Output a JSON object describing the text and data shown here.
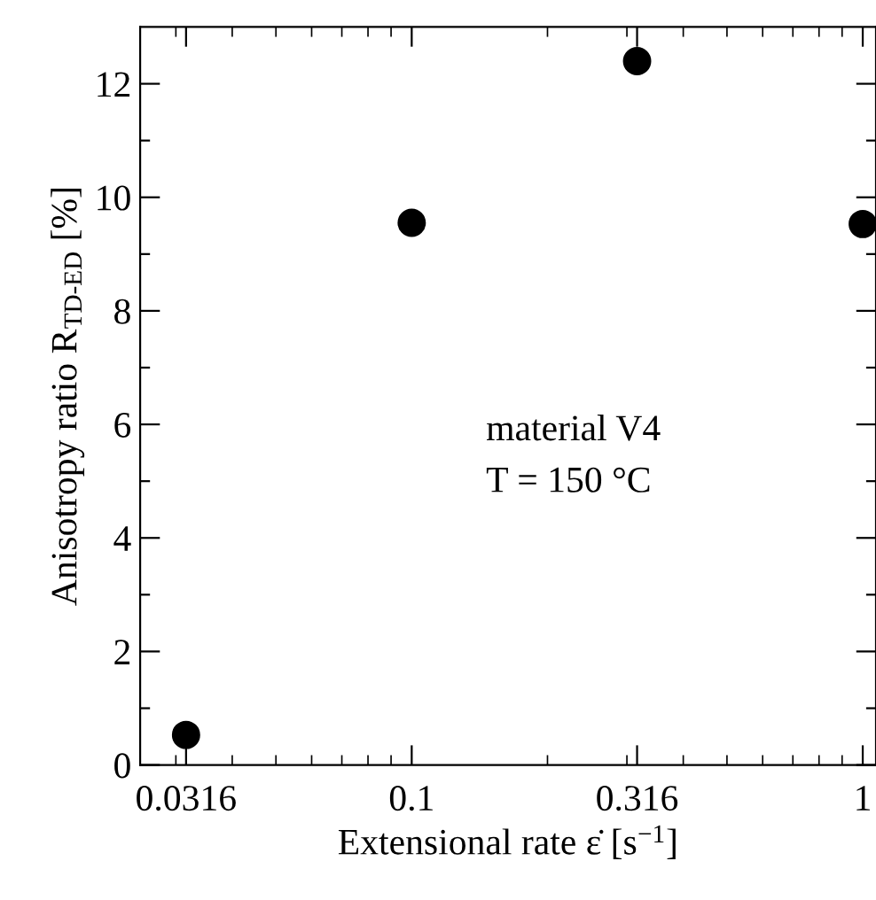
{
  "chart_data": {
    "type": "scatter",
    "xlabel": "Extensional rate ε̇ [s$^{−1}$]",
    "ylabel": "Anisotropy ratio R$_{TD-ED}$ [%]",
    "x": [
      0.0316,
      0.1,
      0.316,
      1
    ],
    "series": [
      {
        "color": "#000000",
        "values": [
          0.53,
          9.55,
          12.4,
          9.53
        ]
      }
    ],
    "log": "x",
    "xlim": [
      0.025,
      1.07
    ],
    "xticks": [
      0.0316,
      0.1,
      0.316,
      1
    ],
    "ylim": [
      0,
      13
    ],
    "yticks": [
      0,
      {
        "value": 1,
        "label": null
      },
      2,
      {
        "value": 3,
        "label": null
      },
      4,
      {
        "value": 5,
        "label": null
      },
      6,
      {
        "value": 7,
        "label": null
      },
      8,
      {
        "value": 9,
        "label": null
      },
      10,
      {
        "value": 11,
        "label": null
      },
      12
    ],
    "marker": "circle",
    "grid": false,
    "legend": false,
    "annotations": [
      "material V4",
      "T = 150 °C"
    ]
  }
}
